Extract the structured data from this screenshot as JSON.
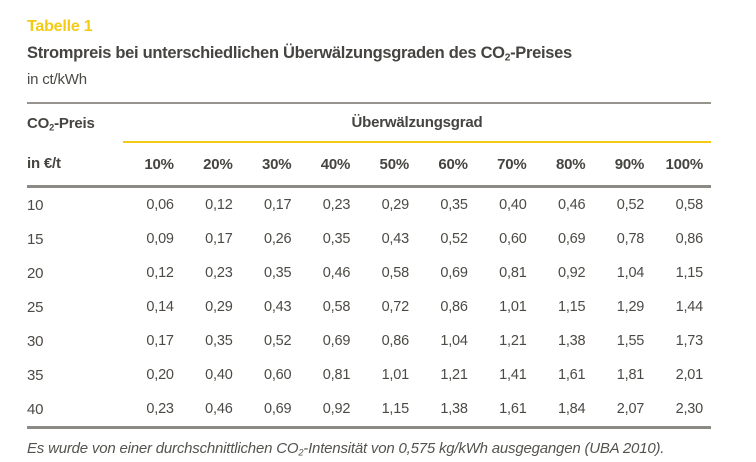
{
  "doc": {
    "kicker": "Tabelle 1",
    "title": {
      "pre": "Strompreis bei unterschiedlichen Überwälzungsgraden des CO",
      "sub": "2",
      "post": "-Preises"
    },
    "unit": "in ct/kWh",
    "footnote": {
      "pre": "Es wurde von einer durchschnittlichen CO",
      "sub": "2",
      "post": "-Intensität von 0,575 kg/kWh ausgegangen (UBA 2010)."
    }
  },
  "table": {
    "row_header": {
      "line1_pre": "CO",
      "line1_sub": "2",
      "line1_post": "-Preis",
      "line2": "in €/t"
    },
    "group_header": "Überwälzungsgrad",
    "col_headers": [
      "10%",
      "20%",
      "30%",
      "40%",
      "50%",
      "60%",
      "70%",
      "80%",
      "90%",
      "100%"
    ],
    "rows": [
      {
        "label": "10",
        "values": [
          "0,06",
          "0,12",
          "0,17",
          "0,23",
          "0,29",
          "0,35",
          "0,40",
          "0,46",
          "0,52",
          "0,58"
        ]
      },
      {
        "label": "15",
        "values": [
          "0,09",
          "0,17",
          "0,26",
          "0,35",
          "0,43",
          "0,52",
          "0,60",
          "0,69",
          "0,78",
          "0,86"
        ]
      },
      {
        "label": "20",
        "values": [
          "0,12",
          "0,23",
          "0,35",
          "0,46",
          "0,58",
          "0,69",
          "0,81",
          "0,92",
          "1,04",
          "1,15"
        ]
      },
      {
        "label": "25",
        "values": [
          "0,14",
          "0,29",
          "0,43",
          "0,58",
          "0,72",
          "0,86",
          "1,01",
          "1,15",
          "1,29",
          "1,44"
        ]
      },
      {
        "label": "30",
        "values": [
          "0,17",
          "0,35",
          "0,52",
          "0,69",
          "0,86",
          "1,04",
          "1,21",
          "1,38",
          "1,55",
          "1,73"
        ]
      },
      {
        "label": "35",
        "values": [
          "0,20",
          "0,40",
          "0,60",
          "0,81",
          "1,01",
          "1,21",
          "1,41",
          "1,61",
          "1,81",
          "2,01"
        ]
      },
      {
        "label": "40",
        "values": [
          "0,23",
          "0,46",
          "0,69",
          "0,92",
          "1,15",
          "1,38",
          "1,61",
          "1,84",
          "2,07",
          "2,30"
        ]
      }
    ]
  },
  "colors": {
    "accent_yellow": "#f3cb15",
    "text": "#4c4a45",
    "rule_light": "#96948d",
    "rule_dark": "#8b8a84"
  }
}
